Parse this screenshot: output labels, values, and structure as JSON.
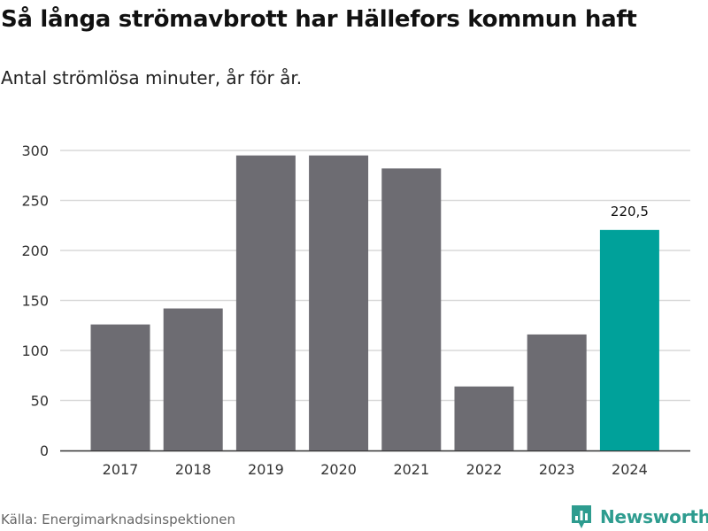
{
  "title": "Så långa strömavbrott har Hällefors kommun haft",
  "subtitle": "Antal strömlösa minuter, år för år.",
  "source": "Källa: Energimarknadsinspektionen",
  "brand": "Newsworthy",
  "colors": {
    "bar": "#6d6c72",
    "highlight": "#00a19a",
    "grid": "#d9d9d9",
    "axis": "#333333",
    "brand": "#2e9c8f"
  },
  "chart_data": {
    "type": "bar",
    "title": "Så långa strömavbrott har Hällefors kommun haft",
    "subtitle": "Antal strömlösa minuter, år för år.",
    "categories": [
      "2017",
      "2018",
      "2019",
      "2020",
      "2021",
      "2022",
      "2023",
      "2024"
    ],
    "values": [
      126,
      142,
      295,
      295,
      282,
      64,
      116,
      220.5
    ],
    "highlight_index": 7,
    "data_labels": [
      {
        "index": 7,
        "text": "220,5"
      }
    ],
    "xlabel": "",
    "ylabel": "",
    "ylim": [
      0,
      300
    ],
    "yticks": [
      0,
      50,
      100,
      150,
      200,
      250,
      300
    ],
    "grid": true,
    "legend": "none"
  }
}
